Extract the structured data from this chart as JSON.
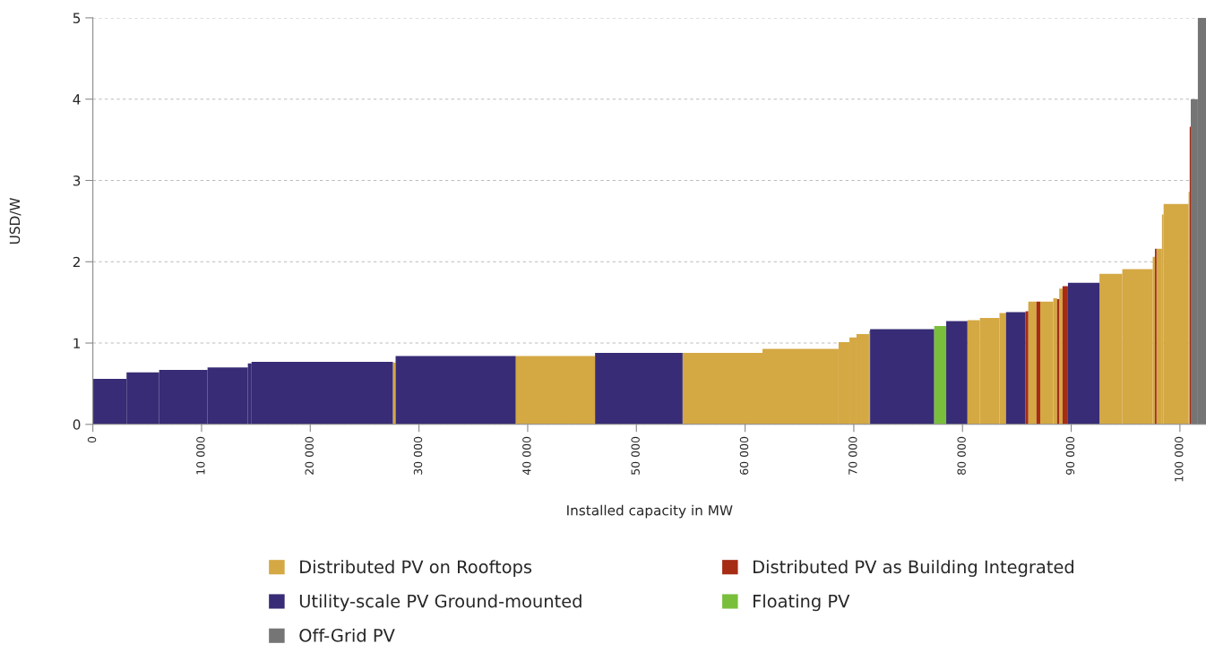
{
  "chart_data": {
    "type": "histogram",
    "xlabel": "Installed capacity in MW",
    "ylabel": "USD/W",
    "bins": [
      0,
      3100,
      6100,
      10550,
      14260,
      14600,
      27600,
      27850,
      38900,
      46200,
      54250,
      61600,
      68600,
      69600,
      70250,
      71400,
      71500,
      77400,
      78500,
      80450,
      81600,
      83400,
      84000,
      85800,
      86050,
      86800,
      87150,
      88350,
      88700,
      88900,
      89200,
      89700,
      92600,
      94700,
      97500,
      97700,
      97850,
      98350,
      98500,
      100800,
      100900,
      101000,
      101650,
      102400
    ],
    "series": [
      {
        "name": "Distributed PV on Rooftops",
        "color": "#d4a843",
        "values": [
          null,
          null,
          null,
          null,
          null,
          null,
          0.76,
          null,
          0.84,
          null,
          0.88,
          0.93,
          1.01,
          1.07,
          1.11,
          1.15,
          null,
          null,
          null,
          1.28,
          1.31,
          1.37,
          null,
          null,
          1.51,
          null,
          1.51,
          1.55,
          null,
          1.67,
          null,
          null,
          1.85,
          1.91,
          2.06,
          null,
          2.16,
          2.58,
          2.71,
          2.86,
          null,
          null,
          null
        ]
      },
      {
        "name": "Utility-scale PV Ground-mounted",
        "color": "#372c75",
        "values": [
          0.56,
          0.64,
          0.67,
          0.7,
          0.75,
          0.77,
          null,
          0.84,
          null,
          0.88,
          null,
          null,
          null,
          null,
          null,
          null,
          1.17,
          null,
          1.27,
          null,
          null,
          null,
          1.38,
          null,
          null,
          null,
          null,
          null,
          null,
          null,
          null,
          1.74,
          null,
          null,
          null,
          null,
          null,
          null,
          null,
          null,
          null,
          null,
          null
        ]
      },
      {
        "name": "Off-Grid PV",
        "color": "#757575",
        "values": [
          null,
          null,
          null,
          null,
          null,
          null,
          null,
          null,
          null,
          null,
          null,
          null,
          null,
          null,
          null,
          null,
          null,
          null,
          null,
          null,
          null,
          null,
          null,
          null,
          null,
          null,
          null,
          null,
          null,
          null,
          null,
          null,
          null,
          null,
          null,
          null,
          null,
          null,
          null,
          null,
          null,
          4.0,
          5.0
        ]
      },
      {
        "name": "Distributed PV as Building Integrated",
        "color": "#a62c14",
        "values": [
          null,
          null,
          null,
          null,
          null,
          null,
          null,
          null,
          null,
          null,
          null,
          null,
          null,
          null,
          null,
          null,
          null,
          null,
          null,
          null,
          null,
          null,
          null,
          1.39,
          null,
          1.51,
          null,
          null,
          1.54,
          null,
          1.7,
          null,
          null,
          null,
          null,
          2.16,
          null,
          null,
          null,
          null,
          3.66,
          null,
          null
        ]
      },
      {
        "name": "Floating PV",
        "color": "#7abf3c",
        "values": [
          null,
          null,
          null,
          null,
          null,
          null,
          null,
          null,
          null,
          null,
          null,
          null,
          null,
          null,
          null,
          null,
          null,
          1.21,
          null,
          null,
          null,
          null,
          null,
          null,
          null,
          null,
          null,
          null,
          null,
          null,
          null,
          null,
          null,
          null,
          null,
          null,
          null,
          null,
          null,
          null,
          null,
          null,
          null
        ]
      }
    ],
    "xlim": [
      0,
      102400
    ],
    "xticks": [
      0,
      {
        "value": 10000,
        "label": "10 000"
      },
      {
        "value": 20000,
        "label": "20 000"
      },
      {
        "value": 30000,
        "label": "30 000"
      },
      {
        "value": 40000,
        "label": "40 000"
      },
      {
        "value": 50000,
        "label": "50 000"
      },
      {
        "value": 60000,
        "label": "60 000"
      },
      {
        "value": 70000,
        "label": "70 000"
      },
      {
        "value": 80000,
        "label": "80 000"
      },
      {
        "value": 90000,
        "label": "90 000"
      },
      {
        "value": 100000,
        "label": "100 000"
      }
    ],
    "ylim": [
      0,
      5
    ],
    "yticks": [
      0,
      1,
      2,
      3,
      4,
      5
    ],
    "grid": "y",
    "legend": "bottom"
  }
}
